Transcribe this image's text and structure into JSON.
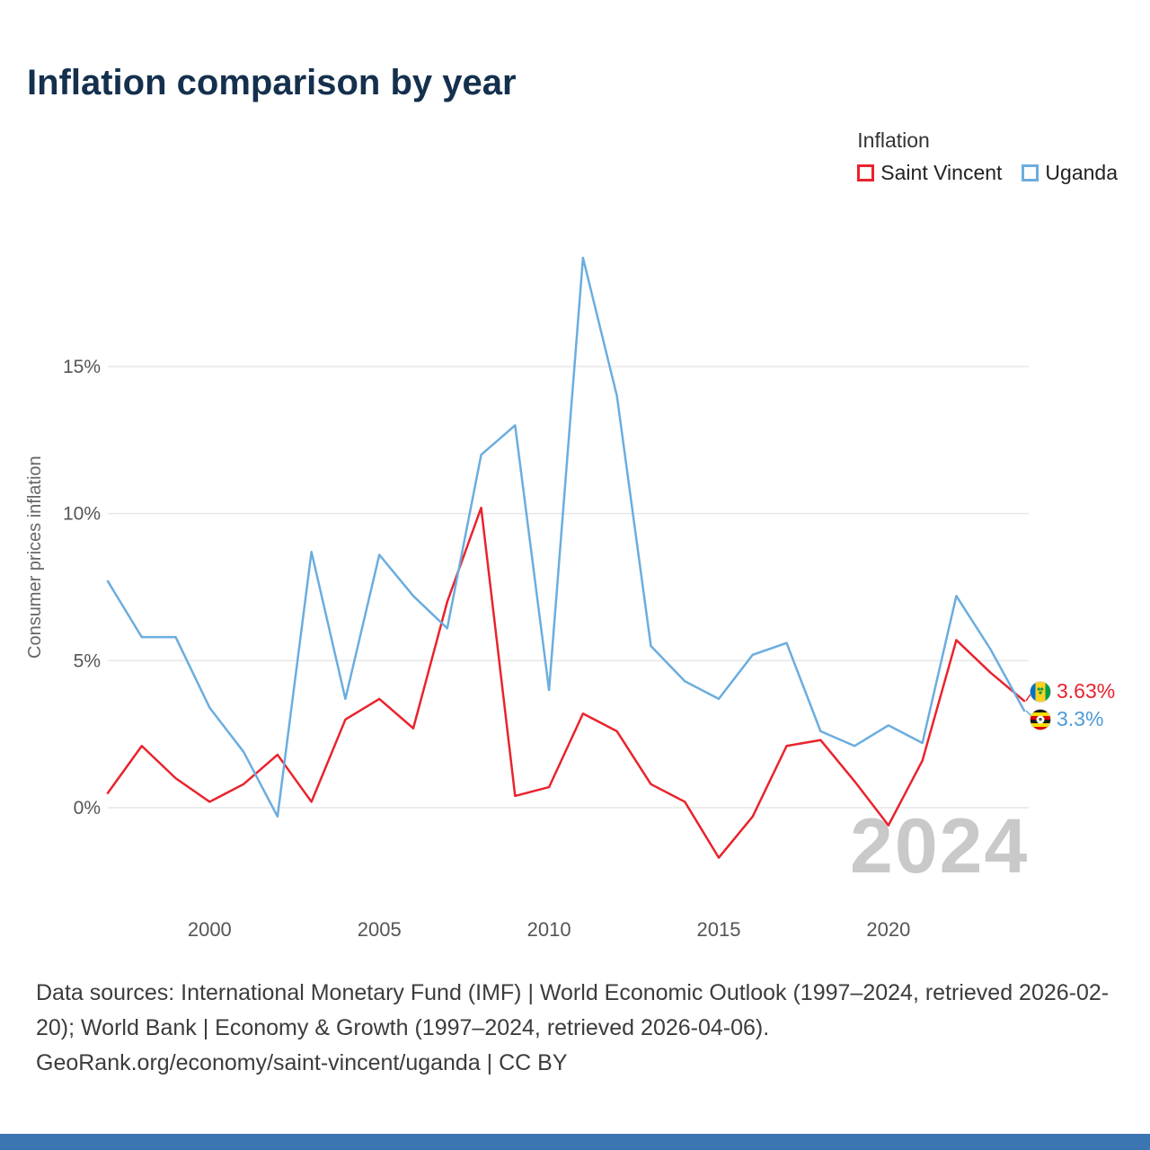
{
  "title": "Inflation comparison by year",
  "legend": {
    "title": "Inflation",
    "items": [
      {
        "label": "Saint Vincent",
        "color": "#e9232d"
      },
      {
        "label": "Uganda",
        "color": "#6badde"
      }
    ]
  },
  "watermark": "2024",
  "end_labels": {
    "saint_vincent": {
      "value": "3.63%",
      "color": "#e9232d",
      "icon": "saint-vincent-flag-icon"
    },
    "uganda": {
      "value": "3.3%",
      "color": "#4d9bd9",
      "icon": "uganda-flag-icon"
    }
  },
  "colors": {
    "title_text": "#14304d",
    "axis_text": "#555555",
    "gridline": "#e7e7e7",
    "watermark": "#c9c9c9",
    "bottom_bar": "#3b76b3",
    "saint_vincent_line": "#e9232d",
    "uganda_line": "#6badde"
  },
  "chart_data": {
    "type": "line",
    "title": "Inflation comparison by year",
    "xlabel": "",
    "ylabel": "Consumer prices inflation",
    "ymax": 15,
    "legend_position": "top-right",
    "grid": "horizontal",
    "x": [
      1997,
      1998,
      1999,
      2000,
      2001,
      2002,
      2003,
      2004,
      2005,
      2006,
      2007,
      2008,
      2009,
      2010,
      2011,
      2012,
      2013,
      2014,
      2015,
      2016,
      2017,
      2018,
      2019,
      2020,
      2021,
      2022,
      2023,
      2024
    ],
    "series": [
      {
        "name": "Saint Vincent",
        "color": "#e9232d",
        "values": [
          0.5,
          2.1,
          1.0,
          0.2,
          0.8,
          1.8,
          0.2,
          3.0,
          3.7,
          2.7,
          7.0,
          10.2,
          0.4,
          0.7,
          3.2,
          2.6,
          0.8,
          0.2,
          -1.7,
          -0.3,
          2.1,
          2.3,
          0.9,
          -0.6,
          1.6,
          5.7,
          4.6,
          3.63
        ]
      },
      {
        "name": "Uganda",
        "color": "#6badde",
        "values": [
          7.7,
          5.8,
          5.8,
          3.4,
          1.9,
          -0.3,
          8.7,
          3.7,
          8.6,
          7.2,
          6.1,
          12.0,
          13.0,
          4.0,
          18.7,
          14.0,
          5.5,
          4.3,
          3.7,
          5.2,
          5.6,
          2.6,
          2.1,
          2.8,
          2.2,
          7.2,
          5.4,
          3.3
        ]
      }
    ],
    "yticks": [
      {
        "value": 0,
        "label": "0%"
      },
      {
        "value": 5,
        "label": "5%"
      },
      {
        "value": 10,
        "label": "10%"
      },
      {
        "value": 15,
        "label": "15%"
      }
    ],
    "xticks": [
      {
        "value": 2000,
        "label": "2000"
      },
      {
        "value": 2005,
        "label": "2005"
      },
      {
        "value": 2010,
        "label": "2010"
      },
      {
        "value": 2015,
        "label": "2015"
      },
      {
        "value": 2020,
        "label": "2020"
      }
    ]
  },
  "footer": {
    "sources": "Data sources: International Monetary Fund (IMF) | World Economic Outlook (1997–2024, retrieved 2026-02-20); World Bank | Economy & Growth (1997–2024, retrieved 2026-04-06).",
    "attribution": "GeoRank.org/economy/saint-vincent/uganda | CC BY"
  }
}
